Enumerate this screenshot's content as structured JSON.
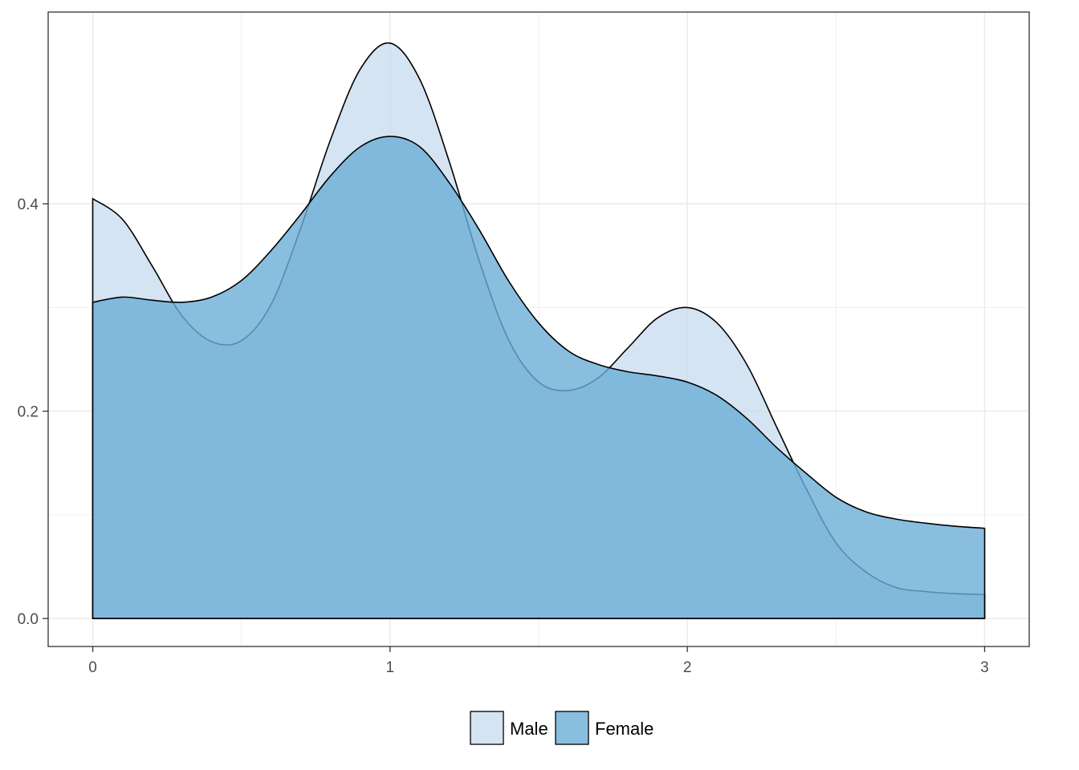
{
  "chart_data": {
    "type": "area",
    "title": "",
    "xlabel": "",
    "ylabel": "",
    "xlim": [
      -0.15,
      3.15
    ],
    "ylim": [
      -0.027,
      0.585
    ],
    "x_ticks": [
      0,
      1,
      2,
      3
    ],
    "x_tick_labels": [
      "0",
      "1",
      "2",
      "3"
    ],
    "y_ticks": [
      0.0,
      0.2,
      0.4
    ],
    "y_tick_labels": [
      "0.0",
      "0.2",
      "0.4"
    ],
    "grid": true,
    "legend": {
      "position": "bottom",
      "entries": [
        "Male",
        "Female"
      ]
    },
    "series": [
      {
        "name": "Male",
        "color": "#c6dbef",
        "x": [
          0,
          0.1,
          0.2,
          0.3,
          0.4,
          0.5,
          0.6,
          0.7,
          0.8,
          0.9,
          1.0,
          1.1,
          1.2,
          1.3,
          1.4,
          1.5,
          1.6,
          1.7,
          1.8,
          1.9,
          2.0,
          2.1,
          2.2,
          2.3,
          2.4,
          2.5,
          2.6,
          2.7,
          2.8,
          2.9,
          3.0
        ],
        "values": [
          0.405,
          0.385,
          0.34,
          0.292,
          0.267,
          0.268,
          0.303,
          0.377,
          0.462,
          0.53,
          0.555,
          0.52,
          0.44,
          0.345,
          0.268,
          0.228,
          0.22,
          0.232,
          0.261,
          0.29,
          0.3,
          0.285,
          0.245,
          0.185,
          0.125,
          0.073,
          0.045,
          0.03,
          0.026,
          0.024,
          0.023
        ]
      },
      {
        "name": "Female",
        "color": "#6baed6",
        "x": [
          0,
          0.1,
          0.2,
          0.3,
          0.4,
          0.5,
          0.6,
          0.7,
          0.8,
          0.9,
          1.0,
          1.1,
          1.2,
          1.3,
          1.4,
          1.5,
          1.6,
          1.7,
          1.8,
          1.9,
          2.0,
          2.1,
          2.2,
          2.3,
          2.4,
          2.5,
          2.6,
          2.7,
          2.8,
          2.9,
          3.0
        ],
        "values": [
          0.305,
          0.31,
          0.307,
          0.305,
          0.31,
          0.326,
          0.355,
          0.39,
          0.427,
          0.455,
          0.465,
          0.455,
          0.42,
          0.375,
          0.325,
          0.285,
          0.258,
          0.245,
          0.238,
          0.234,
          0.228,
          0.215,
          0.193,
          0.165,
          0.14,
          0.117,
          0.103,
          0.096,
          0.092,
          0.089,
          0.087
        ]
      }
    ]
  }
}
